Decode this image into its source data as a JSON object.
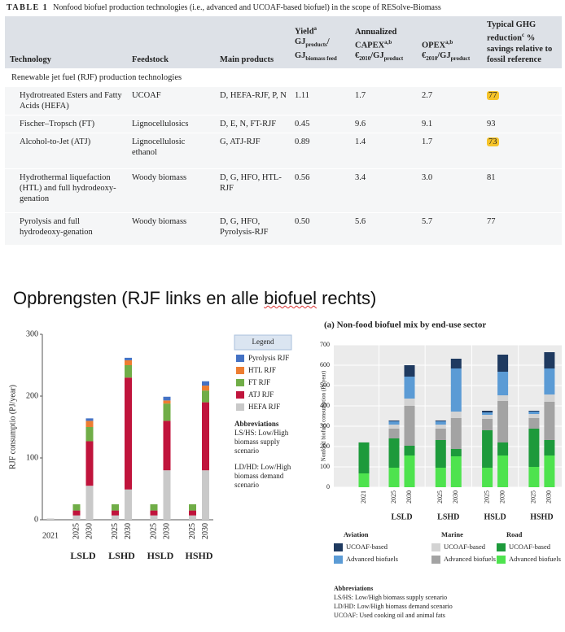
{
  "caption": {
    "label": "TABLE 1",
    "text": "Nonfood biofuel production technologies (i.e., advanced and UCOAF-based biofuel) in the scope of RESolve-Biomass"
  },
  "table": {
    "header": [
      [
        "Technology"
      ],
      [
        "Feedstock"
      ],
      [
        "Main products"
      ],
      [
        "Yield",
        {
          "sup": "a"
        },
        " GJ",
        {
          "sub": "products"
        },
        "/ GJ",
        {
          "sub": "biomass feed"
        }
      ],
      [
        "Annualized CAPEX",
        {
          "sup": "a,b"
        },
        " €",
        {
          "sub": "2010"
        },
        "/GJ",
        {
          "sub": "product"
        }
      ],
      [
        "OPEX",
        {
          "sup": "a,b"
        },
        " €",
        {
          "sub": "2010"
        },
        "/GJ",
        {
          "sub": "product"
        }
      ],
      [
        "Typical GHG reduction",
        {
          "sup": "c"
        },
        " % savings relative to fossil reference"
      ]
    ],
    "section": "Renewable jet fuel (RJF) production technologies",
    "rows": [
      [
        "Hydrotreated Esters and Fatty Acids (HEFA)",
        "UCOAF",
        "D, HEFA-RJF, P, N",
        "1.11",
        "1.7",
        "2.7",
        "77"
      ],
      [
        "Fischer–Tropsch (FT)",
        "Lignocellulosics",
        "D, E, N, FT-RJF",
        "0.45",
        "9.6",
        "9.1",
        "93"
      ],
      [
        "Alcohol-to-Jet (ATJ)",
        "Lignocellulosic ethanol",
        "G, ATJ-RJF",
        "0.89",
        "1.4",
        "1.7",
        "73"
      ],
      [
        "Hydrothermal liquefaction (HTL) and full hydrodeoxy-genation",
        "Woody biomass",
        "D, G, HFO, HTL-RJF",
        "0.56",
        "3.4",
        "3.0",
        "81"
      ],
      [
        "Pyrolysis and full hydrodeoxy-genation",
        "Woody biomass",
        "D, G, HFO, Pyrolysis-RJF",
        "0.50",
        "5.6",
        "5.7",
        "77"
      ]
    ],
    "highlight": [
      [
        0,
        6
      ],
      [
        2,
        6
      ]
    ]
  },
  "heading": [
    "Opbrengsten (RJF links en alle ",
    "biofuel",
    " rechts)"
  ],
  "chart_data": [
    {
      "type": "bar",
      "stacked": true,
      "ylabel": "RJF consumptio (PJ/year)",
      "categories": [
        "2021",
        "2025",
        "2030",
        "2025",
        "2030",
        "2025",
        "2030",
        "2025",
        "2030"
      ],
      "groups": [
        "LSLD",
        "LSHD",
        "HSLD",
        "HSHD"
      ],
      "ylim": [
        0,
        300
      ],
      "yticks": [
        0,
        100,
        200,
        300
      ],
      "legend_title": "Legend",
      "series": [
        {
          "name": "HEFA RJF",
          "color": "#c9c9c9",
          "values": [
            2,
            7,
            55,
            7,
            49,
            7,
            80,
            7,
            80
          ]
        },
        {
          "name": "ATJ RJF",
          "color": "#c0143c",
          "values": [
            0,
            8,
            72,
            8,
            181,
            8,
            80,
            8,
            110
          ]
        },
        {
          "name": "FT RJF",
          "color": "#70ad47",
          "values": [
            0,
            10,
            23,
            10,
            20,
            10,
            28,
            10,
            19
          ]
        },
        {
          "name": "HTL RJF",
          "color": "#ed7d31",
          "values": [
            0,
            0,
            10,
            0,
            8,
            0,
            5,
            0,
            8
          ]
        },
        {
          "name": "Pyrolysis RJF",
          "color": "#4472c4",
          "values": [
            0,
            0,
            4,
            0,
            4,
            0,
            6,
            0,
            7
          ]
        }
      ],
      "notes": {
        "title": "Abbreviations",
        "lines": [
          "LS/HS: Low/High biomass supply scenario",
          "LD/HD: Low/High biomass demand scenario"
        ]
      }
    },
    {
      "type": "bar",
      "stacked": true,
      "grid": true,
      "title": "(a) Non-food biofuel mix by end-use sector",
      "ylabel": "Nonfood biofuel consumption (PJ/year)",
      "categories": [
        "2021",
        "2025",
        "2030",
        "2025",
        "2030",
        "2025",
        "2030",
        "2025",
        "2030"
      ],
      "groups": [
        "LSLD",
        "LSHD",
        "HSLD",
        "HSHD"
      ],
      "ylim": [
        0,
        700
      ],
      "yticks": [
        0,
        100,
        200,
        300,
        400,
        500,
        600,
        700
      ],
      "series": [
        {
          "sector": "Road",
          "name": "Advanced biofuels",
          "color": "#4ee34e",
          "values": [
            68,
            96,
            156,
            96,
            152,
            96,
            156,
            100,
            156
          ]
        },
        {
          "sector": "Road",
          "name": "UCOAF-based",
          "color": "#1d9a3b",
          "values": [
            152,
            144,
            48,
            136,
            36,
            184,
            64,
            188,
            76
          ]
        },
        {
          "sector": "Marine",
          "name": "Advanced biofuels",
          "color": "#a3a3a3",
          "values": [
            0,
            48,
            196,
            56,
            152,
            56,
            204,
            52,
            188
          ]
        },
        {
          "sector": "Marine",
          "name": "UCOAF-based",
          "color": "#d3d3d3",
          "values": [
            2,
            20,
            36,
            20,
            32,
            20,
            28,
            20,
            36
          ]
        },
        {
          "sector": "Aviation",
          "name": "Advanced biofuels",
          "color": "#5b9bd5",
          "values": [
            0,
            16,
            108,
            16,
            212,
            12,
            116,
            12,
            128
          ]
        },
        {
          "sector": "Aviation",
          "name": "UCOAF-based",
          "color": "#1f3a60",
          "values": [
            0,
            4,
            56,
            4,
            48,
            8,
            84,
            4,
            80
          ]
        }
      ],
      "notes": {
        "title": "Abbreviations",
        "lines": [
          "LS/HS: Low/High biomass supply scenario",
          "LD/HD: Low/High biomass demand scenario",
          "UCOAF: Used cooking oil and animal fats"
        ]
      }
    }
  ]
}
